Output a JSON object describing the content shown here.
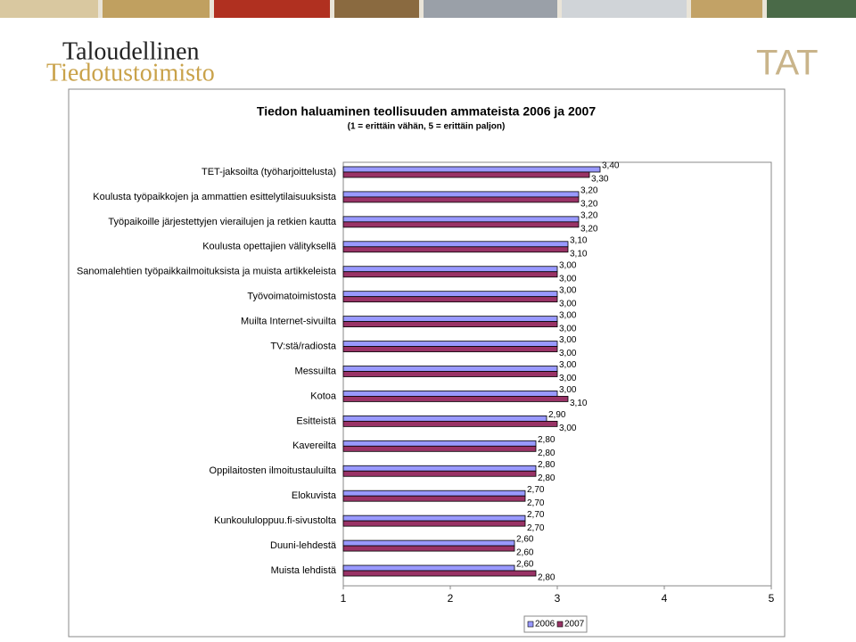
{
  "header": {
    "logo_line1": "Taloudellinen",
    "logo_line2": "Tiedotustoimisto",
    "logo_right": "TAT"
  },
  "chart_data": {
    "type": "bar",
    "orientation": "horizontal",
    "title": "Tiedon haluaminen teollisuuden ammateista 2006 ja 2007",
    "subtitle": "(1 = erittäin vähän, 5 = erittäin paljon)",
    "categories": [
      "TET-jaksoilta (työharjoittelusta)",
      "Koulusta työpaikkojen ja ammattien esittelytilaisuuksista",
      "Työpaikoille järjestettyjen vierailujen ja retkien kautta",
      "Koulusta opettajien välityksellä",
      "Sanomalehtien työpaikkailmoituksista ja muista artikkeleista",
      "Työvoimatoimistosta",
      "Muilta Internet-sivuilta",
      "TV:stä/radiosta",
      "Messuilta",
      "Kotoa",
      "Esitteistä",
      "Kavereilta",
      "Oppilaitosten ilmoitustauluilta",
      "Elokuvista",
      "Kunkoululoppuu.fi-sivustolta",
      "Duuni-lehdestä",
      "Muista lehdistä"
    ],
    "series": [
      {
        "name": "2006",
        "color": "#9999ff",
        "values": [
          3.4,
          3.2,
          3.2,
          3.1,
          3.0,
          3.0,
          3.0,
          3.0,
          3.0,
          3.0,
          2.9,
          2.8,
          2.8,
          2.7,
          2.7,
          2.6,
          2.6
        ],
        "value_labels": [
          "3,40",
          "3,20",
          "3,20",
          "3,10",
          "3,00",
          "3,00",
          "3,00",
          "3,00",
          "3,00",
          "3,00",
          "2,90",
          "2,80",
          "2,80",
          "2,70",
          "2,70",
          "2,60",
          "2,60"
        ]
      },
      {
        "name": "2007",
        "color": "#993366",
        "values": [
          3.3,
          3.2,
          3.2,
          3.1,
          3.0,
          3.0,
          3.0,
          3.0,
          3.0,
          3.1,
          3.0,
          2.8,
          2.8,
          2.7,
          2.7,
          2.6,
          2.8
        ],
        "value_labels": [
          "3,30",
          "3,20",
          "3,20",
          "3,10",
          "3,00",
          "3,00",
          "3,00",
          "3,00",
          "3,00",
          "3,10",
          "3,00",
          "2,80",
          "2,80",
          "2,70",
          "2,70",
          "2,60",
          "2,80"
        ]
      }
    ],
    "xlim": [
      1,
      5
    ],
    "xticks": [
      1,
      2,
      3,
      4,
      5
    ],
    "grid": false,
    "legend": "bottom"
  }
}
